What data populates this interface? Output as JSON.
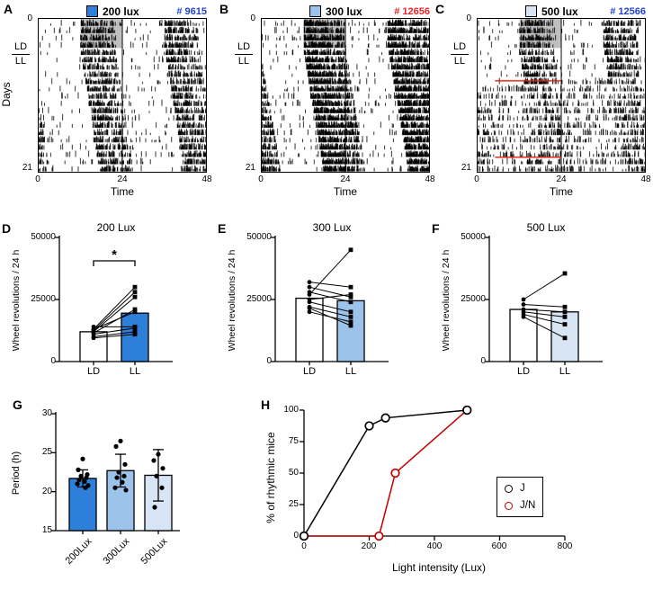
{
  "colors": {
    "blue_200": "#2e7fd9",
    "blue_300": "#9cc3ea",
    "blue_500": "#d8e5f5",
    "count_blue": "#2442cc",
    "count_red": "#e8232a",
    "red": "#dd2211",
    "series_j": "#000000",
    "series_jn": "#c00000"
  },
  "panels": {
    "A": {
      "letter": "A",
      "legend_label": "200 lux",
      "count": "# 9615",
      "day_top": "0",
      "day_bottom": "21",
      "y_axis_label": "Days",
      "ld": "LD",
      "ll": "LL",
      "x_ticks": [
        "0",
        "24",
        "48"
      ],
      "x_label": "Time"
    },
    "B": {
      "letter": "B",
      "legend_label": "300 lux",
      "count": "# 12656",
      "day_top": "0",
      "day_bottom": "21",
      "ld": "LD",
      "ll": "LL",
      "x_ticks": [
        "0",
        "24",
        "48"
      ],
      "x_label": "Time"
    },
    "C": {
      "letter": "C",
      "legend_label": "500 lux",
      "count": "# 12566",
      "day_top": "0",
      "day_bottom": "21",
      "ld": "LD",
      "ll": "LL",
      "x_ticks": [
        "0",
        "24",
        "48"
      ],
      "x_label": "Time"
    },
    "D": {
      "letter": "D",
      "title": "200 Lux",
      "ylabel": "Wheel revolutions / 24 h",
      "y_ticks": [
        "0",
        "25000",
        "50000"
      ],
      "x_ticks": [
        "LD",
        "LL"
      ],
      "significance": "*"
    },
    "E": {
      "letter": "E",
      "title": "300 Lux",
      "ylabel": "Wheel revolutions / 24 h",
      "y_ticks": [
        "0",
        "25000",
        "50000"
      ],
      "x_ticks": [
        "LD",
        "LL"
      ]
    },
    "F": {
      "letter": "F",
      "title": "500 Lux",
      "ylabel": "Wheel revolutions / 24 h",
      "y_ticks": [
        "0",
        "25000",
        "50000"
      ],
      "x_ticks": [
        "LD",
        "LL"
      ]
    },
    "G": {
      "letter": "G",
      "ylabel": "Period (h)",
      "y_ticks": [
        "15",
        "20",
        "25",
        "30"
      ],
      "x_ticks": [
        "200Lux",
        "300Lux",
        "500Lux"
      ]
    },
    "H": {
      "letter": "H",
      "ylabel": "% of rhythmic mice",
      "xlabel": "Light intensity (Lux)",
      "y_ticks": [
        "0",
        "25",
        "50",
        "75",
        "100"
      ],
      "x_ticks": [
        "0",
        "200",
        "400",
        "600",
        "800"
      ],
      "legend": [
        "J",
        "J/N"
      ]
    }
  },
  "chart_data": [
    {
      "id": "A",
      "type": "actogram",
      "title": "200 lux",
      "animal_id": "# 9615",
      "days": 21,
      "hours_per_row": 48,
      "double_plotted": true,
      "ld_days": 4,
      "dark_phase_hours": [
        12,
        24
      ],
      "drift": 0.33,
      "bout_hours": 10,
      "density": 0.5,
      "seed": 11,
      "ylabel": "Days",
      "xlabel": "Time",
      "x_ticks": [
        0,
        24,
        48
      ],
      "y_ticks": [
        0,
        21
      ]
    },
    {
      "id": "B",
      "type": "actogram",
      "title": "300 lux",
      "animal_id": "# 12656",
      "days": 21,
      "hours_per_row": 48,
      "double_plotted": true,
      "ld_days": 4,
      "dark_phase_hours": [
        12,
        24
      ],
      "drift": 0.35,
      "bout_hours": 12,
      "density": 0.8,
      "seed": 23,
      "xlabel": "Time",
      "x_ticks": [
        0,
        24,
        48
      ],
      "y_ticks": [
        0,
        21
      ]
    },
    {
      "id": "C",
      "type": "actogram",
      "title": "500 lux",
      "animal_id": "# 12566",
      "days": 21,
      "hours_per_row": 48,
      "double_plotted": true,
      "ld_days": 4,
      "dark_phase_hours": [
        12,
        24
      ],
      "drift": 0.3,
      "bout_hours": 10,
      "density": 0.55,
      "seed": 37,
      "disperse_after": 9,
      "red_markers": [
        {
          "day": 8,
          "from_h": 5,
          "to_h": 24
        },
        {
          "day": 18.5,
          "from_h": 5,
          "to_h": 24
        }
      ],
      "xlabel": "Time",
      "x_ticks": [
        0,
        24,
        48
      ],
      "y_ticks": [
        0,
        21
      ]
    },
    {
      "id": "D",
      "type": "bar",
      "title": "200 Lux",
      "categories": [
        "LD",
        "LL"
      ],
      "bar_means": [
        12000,
        19500
      ],
      "bar_color": "#2e7fd9",
      "ylim": [
        0,
        50000
      ],
      "ytick_values": [
        0,
        25000,
        50000
      ],
      "ylabel": "Wheel revolutions / 24 h",
      "significance": "*",
      "paired_values": [
        [
          13000,
          30000
        ],
        [
          12500,
          28000
        ],
        [
          12000,
          26000
        ],
        [
          11500,
          21000
        ],
        [
          13000,
          20000
        ],
        [
          11000,
          13500
        ],
        [
          10000,
          12000
        ],
        [
          9500,
          11000
        ],
        [
          14000,
          14000
        ]
      ]
    },
    {
      "id": "E",
      "type": "bar",
      "title": "300 Lux",
      "categories": [
        "LD",
        "LL"
      ],
      "bar_means": [
        25500,
        24500
      ],
      "bar_color": "#9cc3ea",
      "ylim": [
        0,
        50000
      ],
      "ytick_values": [
        0,
        25000,
        50000
      ],
      "ylabel": "Wheel revolutions / 24 h",
      "paired_values": [
        [
          27000,
          45000
        ],
        [
          32000,
          30000
        ],
        [
          30000,
          26000
        ],
        [
          28000,
          24000
        ],
        [
          25000,
          27000
        ],
        [
          24000,
          20000
        ],
        [
          22000,
          18000
        ],
        [
          20000,
          16000
        ],
        [
          21500,
          14500
        ]
      ]
    },
    {
      "id": "F",
      "type": "bar",
      "title": "500 Lux",
      "categories": [
        "LD",
        "LL"
      ],
      "bar_means": [
        21000,
        20000
      ],
      "bar_color": "#d8e5f5",
      "ylim": [
        0,
        50000
      ],
      "ytick_values": [
        0,
        25000,
        50000
      ],
      "ylabel": "Wheel revolutions / 24 h",
      "paired_values": [
        [
          25000,
          35500
        ],
        [
          23000,
          22000
        ],
        [
          21000,
          20000
        ],
        [
          20000,
          18000
        ],
        [
          19000,
          15000
        ],
        [
          18000,
          9500
        ]
      ]
    },
    {
      "id": "G",
      "type": "bar",
      "categories": [
        "200Lux",
        "300Lux",
        "500Lux"
      ],
      "means": [
        21.7,
        22.7,
        22.1
      ],
      "sd": [
        1.1,
        2.1,
        3.3
      ],
      "colors": [
        "#2e7fd9",
        "#9cc3ea",
        "#d8e5f5"
      ],
      "ylim": [
        15,
        30
      ],
      "ytick_values": [
        15,
        20,
        25,
        30
      ],
      "ylabel": "Period (h)",
      "points": [
        [
          24.2,
          22.8,
          22.2,
          22.0,
          21.8,
          21.5,
          21.3,
          21.0,
          20.8,
          20.5
        ],
        [
          26.5,
          25.8,
          23.5,
          22.5,
          22.0,
          21.8,
          21.2,
          20.5,
          20.2
        ],
        [
          24.8,
          24.0,
          23.0,
          22.0,
          20.5,
          18.0
        ]
      ]
    },
    {
      "id": "H",
      "type": "line",
      "ylabel": "% of rhythmic mice",
      "xlabel": "Light intensity (Lux)",
      "xlim": [
        0,
        800
      ],
      "ylim": [
        0,
        100
      ],
      "xtick_values": [
        0,
        200,
        400,
        600,
        800
      ],
      "ytick_values": [
        0,
        25,
        50,
        75,
        100
      ],
      "legend_position": "right",
      "series": [
        {
          "name": "J",
          "color": "#000000",
          "x": [
            0,
            200,
            250,
            500
          ],
          "y": [
            0,
            87.5,
            93.8,
            100
          ]
        },
        {
          "name": "J/N",
          "color": "#c00000",
          "x": [
            0,
            230,
            280,
            500
          ],
          "y": [
            0,
            0,
            50,
            100
          ]
        }
      ]
    }
  ]
}
